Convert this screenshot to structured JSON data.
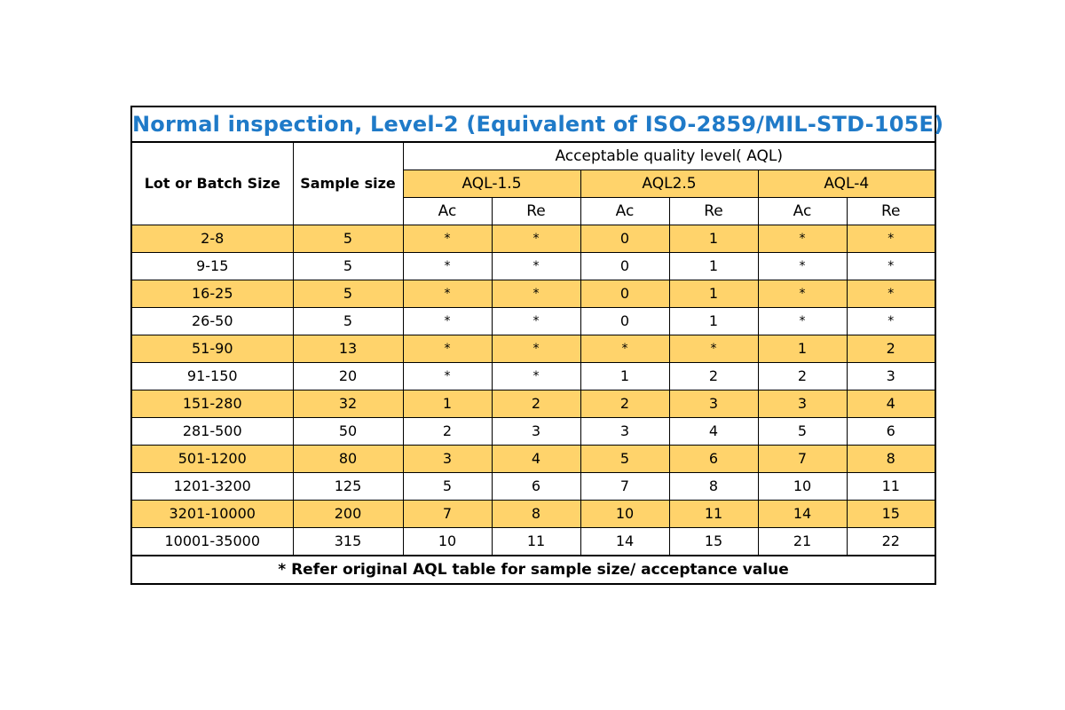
{
  "title": "Normal inspection, Level-2 (Equivalent of  ISO-2859/MIL-STD-105E)",
  "headers": {
    "lot_size": "Lot or Batch Size",
    "sample_size": "Sample size",
    "aql_heading": "Acceptable quality level( AQL)",
    "aql_groups": [
      "AQL-1.5",
      "AQL2.5",
      "AQL-4"
    ],
    "ac": "Ac",
    "re": "Re"
  },
  "rows": [
    {
      "lot": "2-8",
      "sample": "5",
      "v": [
        "*",
        "*",
        "0",
        "1",
        "*",
        "*"
      ],
      "highlight": true
    },
    {
      "lot": "9-15",
      "sample": "5",
      "v": [
        "*",
        "*",
        "0",
        "1",
        "*",
        "*"
      ],
      "highlight": false
    },
    {
      "lot": "16-25",
      "sample": "5",
      "v": [
        "*",
        "*",
        "0",
        "1",
        "*",
        "*"
      ],
      "highlight": true
    },
    {
      "lot": "26-50",
      "sample": "5",
      "v": [
        "*",
        "*",
        "0",
        "1",
        "*",
        "*"
      ],
      "highlight": false
    },
    {
      "lot": "51-90",
      "sample": "13",
      "v": [
        "*",
        "*",
        "*",
        "*",
        "1",
        "2"
      ],
      "highlight": true
    },
    {
      "lot": "91-150",
      "sample": "20",
      "v": [
        "*",
        "*",
        "1",
        "2",
        "2",
        "3"
      ],
      "highlight": false
    },
    {
      "lot": "151-280",
      "sample": "32",
      "v": [
        "1",
        "2",
        "2",
        "3",
        "3",
        "4"
      ],
      "highlight": true
    },
    {
      "lot": "281-500",
      "sample": "50",
      "v": [
        "2",
        "3",
        "3",
        "4",
        "5",
        "6"
      ],
      "highlight": false
    },
    {
      "lot": "501-1200",
      "sample": "80",
      "v": [
        "3",
        "4",
        "5",
        "6",
        "7",
        "8"
      ],
      "highlight": true
    },
    {
      "lot": "1201-3200",
      "sample": "125",
      "v": [
        "5",
        "6",
        "7",
        "8",
        "10",
        "11"
      ],
      "highlight": false
    },
    {
      "lot": "3201-10000",
      "sample": "200",
      "v": [
        "7",
        "8",
        "10",
        "11",
        "14",
        "15"
      ],
      "highlight": true
    },
    {
      "lot": "10001-35000",
      "sample": "315",
      "v": [
        "10",
        "11",
        "14",
        "15",
        "21",
        "22"
      ],
      "highlight": false
    }
  ],
  "footnote": "* Refer original AQL  table for sample size/ acceptance value",
  "colors": {
    "title": "#1f7ac8",
    "highlight": "#ffd36b",
    "border": "#000000"
  }
}
